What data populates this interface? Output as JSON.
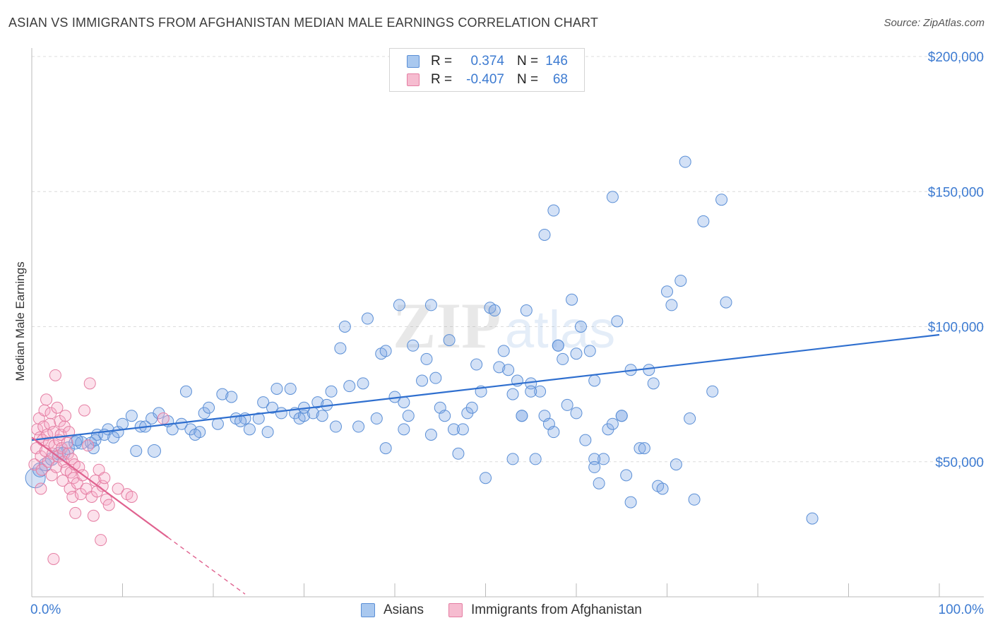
{
  "title": "ASIAN VS IMMIGRANTS FROM AFGHANISTAN MEDIAN MALE EARNINGS CORRELATION CHART",
  "source": "Source: ZipAtlas.com",
  "watermark": {
    "zip": "ZIP",
    "atlas": "atlas"
  },
  "legend_top": [
    {
      "r_label": "R =",
      "r_value": "0.374",
      "n_label": "N =",
      "n_value": "146",
      "color": "#a9c8ef",
      "border": "#5b8fd6"
    },
    {
      "r_label": "R =",
      "r_value": "-0.407",
      "n_label": "N =",
      "n_value": "68",
      "color": "#f6bcd0",
      "border": "#e57ea3"
    }
  ],
  "legend_bottom": [
    {
      "label": "Asians",
      "color": "#a9c8ef",
      "border": "#5b8fd6"
    },
    {
      "label": "Immigrants from Afghanistan",
      "color": "#f6bcd0",
      "border": "#e57ea3"
    }
  ],
  "chart_data": {
    "type": "scatter",
    "title": "ASIAN VS IMMIGRANTS FROM AFGHANISTAN MEDIAN MALE EARNINGS CORRELATION CHART",
    "xlabel": "",
    "ylabel": "Median Male Earnings",
    "xlim": [
      0,
      100
    ],
    "ylim": [
      0,
      210000
    ],
    "x_tick_labels": [
      "0.0%",
      "100.0%"
    ],
    "y_ticks": [
      50000,
      100000,
      150000,
      200000
    ],
    "y_tick_labels": [
      "$50,000",
      "$100,000",
      "$150,000",
      "$200,000"
    ],
    "grid": true,
    "legend_position": "top-center",
    "series": [
      {
        "name": "Asians",
        "color": "#5b8fd6",
        "fill": "rgba(130,170,230,0.35)",
        "trend": {
          "x": [
            0,
            100
          ],
          "y": [
            58000,
            97000
          ],
          "color": "#2f6fcf"
        },
        "points": [
          [
            0.4,
            44000,
            14
          ],
          [
            0.9,
            47000,
            10
          ],
          [
            1.5,
            49000,
            9
          ],
          [
            2.2,
            51000,
            9
          ],
          [
            3.0,
            53000,
            9
          ],
          [
            4.0,
            55000,
            9
          ],
          [
            4.8,
            57000,
            9
          ],
          [
            5.5,
            57000,
            9
          ],
          [
            6.5,
            57000,
            8
          ],
          [
            7.2,
            60000,
            8
          ],
          [
            8.4,
            62000,
            8
          ],
          [
            3.5,
            53000,
            9
          ],
          [
            5.0,
            58000,
            8
          ],
          [
            6.8,
            55000,
            8
          ],
          [
            8.0,
            60000,
            8
          ],
          [
            9.5,
            61000,
            8
          ],
          [
            10.0,
            64000,
            8
          ],
          [
            11.0,
            67000,
            8
          ],
          [
            12.0,
            63000,
            8
          ],
          [
            13.2,
            66000,
            8
          ],
          [
            14.0,
            68000,
            8
          ],
          [
            7.0,
            58000,
            8
          ],
          [
            9.0,
            59000,
            8
          ],
          [
            11.5,
            54000,
            8
          ],
          [
            13.5,
            54000,
            9
          ],
          [
            15.5,
            62000,
            8
          ],
          [
            16.5,
            64000,
            8
          ],
          [
            17.5,
            62000,
            8
          ],
          [
            18.5,
            61000,
            8
          ],
          [
            19.0,
            68000,
            8
          ],
          [
            19.5,
            70000,
            8
          ],
          [
            17.0,
            76000,
            8
          ],
          [
            20.5,
            64000,
            8
          ],
          [
            21.0,
            75000,
            8
          ],
          [
            22.0,
            74000,
            8
          ],
          [
            22.5,
            66000,
            8
          ],
          [
            23.5,
            66000,
            8
          ],
          [
            24.0,
            62000,
            8
          ],
          [
            25.0,
            66000,
            8
          ],
          [
            25.5,
            72000,
            8
          ],
          [
            26.0,
            61000,
            8
          ],
          [
            26.5,
            70000,
            8
          ],
          [
            27.0,
            77000,
            8
          ],
          [
            27.5,
            68000,
            8
          ],
          [
            28.5,
            77000,
            8
          ],
          [
            29.0,
            68000,
            8
          ],
          [
            29.5,
            66000,
            8
          ],
          [
            30.0,
            67000,
            8
          ],
          [
            31.0,
            68000,
            8
          ],
          [
            31.5,
            72000,
            8
          ],
          [
            32.0,
            67000,
            8
          ],
          [
            32.5,
            71000,
            8
          ],
          [
            33.0,
            76000,
            8
          ],
          [
            33.5,
            63000,
            8
          ],
          [
            34.0,
            92000,
            8
          ],
          [
            34.5,
            100000,
            8
          ],
          [
            35.0,
            78000,
            8
          ],
          [
            36.0,
            63000,
            8
          ],
          [
            36.5,
            79000,
            8
          ],
          [
            37.0,
            103000,
            8
          ],
          [
            38.0,
            66000,
            8
          ],
          [
            38.5,
            90000,
            8
          ],
          [
            39.0,
            55000,
            8
          ],
          [
            40.0,
            74000,
            8
          ],
          [
            40.5,
            108000,
            8
          ],
          [
            41.0,
            72000,
            8
          ],
          [
            41.5,
            67000,
            8
          ],
          [
            42.0,
            93000,
            8
          ],
          [
            43.0,
            80000,
            8
          ],
          [
            43.5,
            88000,
            8
          ],
          [
            44.0,
            108000,
            8
          ],
          [
            44.5,
            81000,
            8
          ],
          [
            45.0,
            70000,
            8
          ],
          [
            45.5,
            67000,
            8
          ],
          [
            46.0,
            95000,
            8
          ],
          [
            46.5,
            62000,
            8
          ],
          [
            47.0,
            53000,
            8
          ],
          [
            47.5,
            62000,
            8
          ],
          [
            48.0,
            68000,
            8
          ],
          [
            48.5,
            70000,
            8
          ],
          [
            49.0,
            86000,
            8
          ],
          [
            49.5,
            76000,
            8
          ],
          [
            50.0,
            44000,
            8
          ],
          [
            50.5,
            107000,
            8
          ],
          [
            51.0,
            106000,
            8
          ],
          [
            51.5,
            85000,
            8
          ],
          [
            52.0,
            91000,
            8
          ],
          [
            52.5,
            84000,
            8
          ],
          [
            53.0,
            75000,
            8
          ],
          [
            53.5,
            80000,
            8
          ],
          [
            54.0,
            67000,
            8
          ],
          [
            54.5,
            106000,
            8
          ],
          [
            55.0,
            79000,
            8
          ],
          [
            55.5,
            51000,
            8
          ],
          [
            56.0,
            76000,
            8
          ],
          [
            56.5,
            67000,
            8
          ],
          [
            57.0,
            64000,
            8
          ],
          [
            57.5,
            61000,
            8
          ],
          [
            58.0,
            93000,
            8
          ],
          [
            58.5,
            88000,
            8
          ],
          [
            59.0,
            71000,
            8
          ],
          [
            59.5,
            110000,
            8
          ],
          [
            60.0,
            68000,
            8
          ],
          [
            60.5,
            100000,
            8
          ],
          [
            61.0,
            58000,
            8
          ],
          [
            61.5,
            91000,
            8
          ],
          [
            62.0,
            80000,
            8
          ],
          [
            63.0,
            51000,
            8
          ],
          [
            63.5,
            62000,
            8
          ],
          [
            64.0,
            64000,
            8
          ],
          [
            64.5,
            102000,
            8
          ],
          [
            65.0,
            67000,
            8
          ],
          [
            65.5,
            45000,
            8
          ],
          [
            66.0,
            35000,
            8
          ],
          [
            67.0,
            55000,
            8
          ],
          [
            67.5,
            55000,
            8
          ],
          [
            68.0,
            84000,
            8
          ],
          [
            68.5,
            79000,
            8
          ],
          [
            69.0,
            41000,
            8
          ],
          [
            69.5,
            40000,
            8
          ],
          [
            70.0,
            113000,
            8
          ],
          [
            70.5,
            108000,
            8
          ],
          [
            71.0,
            49000,
            8
          ],
          [
            71.5,
            117000,
            8
          ],
          [
            72.0,
            161000,
            8
          ],
          [
            72.5,
            66000,
            8
          ],
          [
            73.0,
            36000,
            8
          ],
          [
            74.0,
            139000,
            8
          ],
          [
            75.0,
            76000,
            8
          ],
          [
            76.0,
            147000,
            8
          ],
          [
            76.5,
            109000,
            8
          ],
          [
            56.5,
            134000,
            8
          ],
          [
            57.5,
            143000,
            8
          ],
          [
            58.0,
            93000,
            8
          ],
          [
            60.0,
            90000,
            8
          ],
          [
            62.0,
            51000,
            8
          ],
          [
            62.5,
            42000,
            8
          ],
          [
            62.0,
            48000,
            8
          ],
          [
            64.0,
            148000,
            8
          ],
          [
            86.0,
            29000,
            8
          ],
          [
            65.0,
            67000,
            8
          ],
          [
            66.0,
            84000,
            8
          ],
          [
            55.0,
            76000,
            8
          ],
          [
            54.0,
            67000,
            8
          ],
          [
            53.0,
            51000,
            8
          ],
          [
            41.0,
            62000,
            8
          ],
          [
            39.0,
            91000,
            8
          ],
          [
            44.0,
            60000,
            8
          ],
          [
            30.0,
            70000,
            8
          ],
          [
            23.0,
            65000,
            8
          ],
          [
            15.0,
            65000,
            8
          ],
          [
            18.0,
            60000,
            8
          ],
          [
            12.5,
            63000,
            8
          ]
        ]
      },
      {
        "name": "Immigrants from Afghanistan",
        "color": "#e57ea3",
        "fill": "rgba(246,170,198,0.35)",
        "trend": {
          "x": [
            0,
            15
          ],
          "y": [
            59000,
            22000
          ],
          "dash_x": [
            15,
            23.5
          ],
          "dash_y": [
            22000,
            1000
          ],
          "color": "#e0628f"
        },
        "points": [
          [
            0.3,
            49000,
            8
          ],
          [
            0.5,
            55000,
            8
          ],
          [
            0.6,
            62000,
            8
          ],
          [
            0.8,
            66000,
            8
          ],
          [
            0.9,
            59000,
            8
          ],
          [
            1.0,
            52000,
            8
          ],
          [
            1.1,
            47000,
            8
          ],
          [
            1.2,
            58000,
            8
          ],
          [
            1.3,
            63000,
            8
          ],
          [
            1.4,
            69000,
            8
          ],
          [
            1.5,
            54000,
            8
          ],
          [
            1.6,
            73000,
            8
          ],
          [
            1.7,
            60000,
            8
          ],
          [
            1.8,
            50000,
            8
          ],
          [
            1.9,
            57000,
            8
          ],
          [
            2.0,
            64000,
            8
          ],
          [
            2.1,
            68000,
            8
          ],
          [
            2.2,
            45000,
            8
          ],
          [
            2.3,
            53000,
            8
          ],
          [
            2.4,
            61000,
            8
          ],
          [
            2.5,
            56000,
            8
          ],
          [
            2.6,
            82000,
            8
          ],
          [
            2.7,
            48000,
            8
          ],
          [
            2.8,
            70000,
            8
          ],
          [
            2.9,
            52000,
            8
          ],
          [
            3.0,
            58000,
            8
          ],
          [
            3.1,
            65000,
            8
          ],
          [
            3.2,
            60000,
            8
          ],
          [
            3.3,
            55000,
            8
          ],
          [
            3.4,
            43000,
            8
          ],
          [
            3.5,
            50000,
            8
          ],
          [
            3.6,
            63000,
            8
          ],
          [
            3.7,
            67000,
            8
          ],
          [
            3.8,
            47000,
            8
          ],
          [
            3.9,
            57000,
            8
          ],
          [
            4.0,
            53000,
            8
          ],
          [
            4.1,
            61000,
            8
          ],
          [
            4.2,
            40000,
            8
          ],
          [
            4.3,
            46000,
            8
          ],
          [
            4.4,
            51000,
            8
          ],
          [
            4.5,
            37000,
            8
          ],
          [
            4.6,
            44000,
            8
          ],
          [
            4.7,
            49000,
            8
          ],
          [
            4.8,
            31000,
            8
          ],
          [
            5.0,
            42000,
            8
          ],
          [
            5.2,
            48000,
            8
          ],
          [
            5.4,
            38000,
            8
          ],
          [
            5.6,
            45000,
            8
          ],
          [
            5.8,
            69000,
            8
          ],
          [
            6.0,
            40000,
            8
          ],
          [
            6.2,
            56000,
            8
          ],
          [
            6.4,
            79000,
            8
          ],
          [
            6.6,
            37000,
            8
          ],
          [
            6.8,
            30000,
            8
          ],
          [
            7.0,
            43000,
            8
          ],
          [
            7.2,
            39000,
            8
          ],
          [
            7.4,
            47000,
            8
          ],
          [
            7.6,
            21000,
            8
          ],
          [
            7.8,
            41000,
            8
          ],
          [
            8.0,
            44000,
            8
          ],
          [
            8.2,
            36000,
            8
          ],
          [
            8.5,
            34000,
            8
          ],
          [
            9.5,
            40000,
            8
          ],
          [
            10.5,
            38000,
            8
          ],
          [
            11.0,
            37000,
            8
          ],
          [
            14.5,
            66000,
            8
          ],
          [
            2.4,
            14000,
            8
          ],
          [
            1.0,
            40000,
            8
          ]
        ]
      }
    ]
  }
}
